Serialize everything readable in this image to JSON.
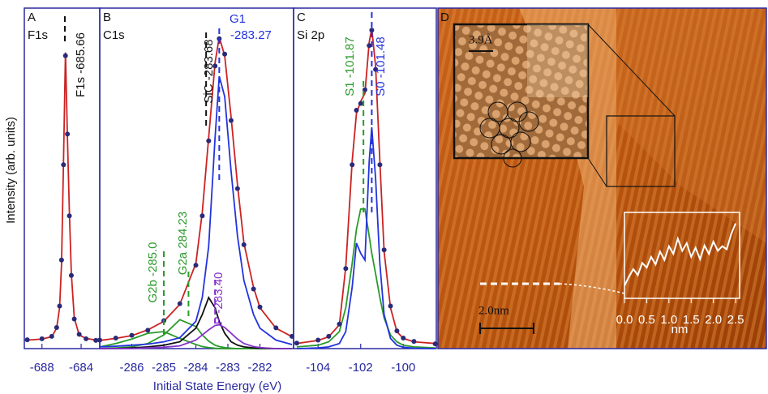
{
  "chart_data": [
    {
      "type": "line",
      "label": "A",
      "title": "F1s",
      "y_label": "Intensity (arb. units)",
      "xlim": [
        -689.8,
        -682.1
      ],
      "xticks": [
        -688,
        -684
      ],
      "ylim": [
        0,
        100
      ],
      "x": [
        -689.5,
        -688,
        -687,
        -686.5,
        -686.2,
        -686,
        -685.8,
        -685.6,
        -685.4,
        -685.2,
        -685,
        -684.7,
        -684.2,
        -683.5,
        -682.5
      ],
      "series": [
        {
          "style": "line",
          "color": "#cc2222",
          "values": [
            2.5,
            2.8,
            3.5,
            6,
            12,
            25,
            55,
            87,
            62,
            40,
            22,
            9,
            4,
            3,
            2.5
          ]
        },
        {
          "style": "dots",
          "color": "#2a2a7a",
          "values": [
            2.6,
            2.9,
            3.6,
            6.2,
            12.5,
            26,
            54,
            86,
            63,
            39,
            21.5,
            8.7,
            4.2,
            2.9,
            2.4
          ]
        }
      ],
      "annotations": [
        {
          "text": "F1s -685.66",
          "x": -685.66,
          "color": "#111111"
        }
      ]
    },
    {
      "type": "line",
      "label": "B",
      "title": "C1s",
      "x_label": "Initial State Energy (eV)",
      "xlim": [
        -287,
        -280.95
      ],
      "xticks": [
        -286,
        -285,
        -284,
        -283,
        -282
      ],
      "ylim": [
        0,
        100
      ],
      "x": [
        -287,
        -286.5,
        -286,
        -285.5,
        -285,
        -284.5,
        -284,
        -283.8,
        -283.6,
        -283.4,
        -283.27,
        -283.1,
        -282.9,
        -282.7,
        -282.5,
        -282.2,
        -282,
        -281.5,
        -281
      ],
      "series": [
        {
          "style": "line",
          "color": "#2a9a2a",
          "values": [
            0.5,
            1.5,
            2.8,
            4.5,
            5,
            3,
            1.2,
            0.6,
            0.3,
            0.1,
            0,
            0,
            0,
            0,
            0,
            0,
            0,
            0,
            0
          ]
        },
        {
          "style": "line",
          "color": "#2a9a2a",
          "values": [
            0,
            0.2,
            0.5,
            1.5,
            4,
            8.5,
            6.5,
            4,
            2.2,
            1,
            0.6,
            0.3,
            0.1,
            0,
            0,
            0,
            0,
            0,
            0
          ]
        },
        {
          "style": "line",
          "color": "#111111",
          "values": [
            0,
            0,
            0.2,
            0.5,
            1,
            2,
            6,
            10,
            15,
            12,
            8,
            4.5,
            2,
            1,
            0.5,
            0.2,
            0.1,
            0,
            0
          ]
        },
        {
          "style": "line",
          "color": "#8833cc",
          "values": [
            0,
            0,
            0,
            0.2,
            0.4,
            0.8,
            2.5,
            4,
            5.5,
            6.8,
            7,
            6.2,
            4.5,
            2.8,
            1.5,
            0.6,
            0.3,
            0,
            0
          ]
        },
        {
          "style": "line",
          "color": "#2233dd",
          "values": [
            0.5,
            0.7,
            1,
            1.3,
            2,
            3.2,
            8,
            15,
            30,
            62,
            80,
            74,
            52,
            33,
            20,
            10,
            6,
            2.5,
            1.2
          ]
        },
        {
          "style": "line",
          "color": "#cc2222",
          "values": [
            2.4,
            3,
            3.8,
            5.5,
            8,
            13,
            25,
            40,
            62,
            84,
            91.5,
            86,
            68,
            48,
            31,
            18,
            12,
            6,
            3.5
          ]
        },
        {
          "style": "dots",
          "color": "#2a2a7a",
          "values": [
            2.5,
            3.1,
            3.9,
            5.4,
            8.2,
            13.2,
            24.5,
            39,
            61,
            83,
            91,
            86.5,
            67,
            47,
            30.5,
            17.5,
            12.2,
            6.1,
            3.6
          ]
        }
      ],
      "annotations": [
        {
          "text": "SiC -283.68",
          "x": -283.68,
          "color": "#111111"
        },
        {
          "text": "G1",
          "text2": "-283.27",
          "x": -283.27,
          "color": "#2233dd"
        },
        {
          "text": "G2a 284.23",
          "x": -284.23,
          "color": "#2a9a2a"
        },
        {
          "text": "G2b -285.0",
          "x": -285.0,
          "color": "#2a9a2a"
        },
        {
          "text": "P -283.40",
          "x": -283.4,
          "color": "#8833cc"
        }
      ]
    },
    {
      "type": "line",
      "label": "C",
      "title": "Si 2p",
      "xlim": [
        -105.15,
        -98.45
      ],
      "xticks": [
        -104,
        -102,
        -100
      ],
      "ylim": [
        0,
        100
      ],
      "x": [
        -105,
        -104,
        -103.5,
        -103,
        -102.7,
        -102.4,
        -102.2,
        -102,
        -101.8,
        -101.6,
        -101.48,
        -101.3,
        -101.1,
        -100.9,
        -100.6,
        -100.3,
        -100,
        -99.5,
        -98.5
      ],
      "series": [
        {
          "style": "line",
          "color": "#2a9a2a",
          "values": [
            0.5,
            1,
            2,
            5,
            12,
            25,
            35,
            41,
            41,
            33,
            28,
            22,
            15,
            9,
            4,
            2,
            1,
            0.5,
            0.2
          ]
        },
        {
          "style": "line",
          "color": "#2233dd",
          "values": [
            0,
            0.2,
            0.5,
            1.5,
            5,
            18,
            31,
            28,
            26,
            55,
            65,
            50,
            25,
            10,
            3,
            1,
            0.4,
            0.1,
            0
          ]
        },
        {
          "style": "line",
          "color": "#cc2222",
          "values": [
            1.5,
            2.4,
            3.5,
            7,
            24,
            55,
            69,
            72.6,
            75,
            90,
            94,
            83,
            55,
            28.5,
            12,
            5,
            3,
            2,
            1.5
          ]
        },
        {
          "style": "dots",
          "color": "#2a2a7a",
          "values": [
            1.6,
            2.5,
            3.6,
            7.2,
            23.5,
            54,
            70,
            72,
            76,
            89,
            93.5,
            82,
            54,
            29,
            12.5,
            5.2,
            3.1,
            2.1,
            1.4
          ]
        }
      ],
      "annotations": [
        {
          "text": "S1 -101.87",
          "x": -101.87,
          "color": "#2a9a2a"
        },
        {
          "text": "S0 -101.48",
          "x": -101.48,
          "color": "#2233dd"
        }
      ]
    },
    {
      "type": "line",
      "x_label": "nm",
      "color": "#ffffff",
      "xlim": [
        0,
        2.59
      ],
      "ylim": [
        0,
        100
      ],
      "xticks": [
        {
          "value": 0,
          "label": "0.0"
        },
        0.5,
        {
          "value": 1,
          "label": "1.0"
        },
        1.5,
        {
          "value": 2,
          "label": "2.0"
        },
        2.5
      ],
      "x": [
        0,
        0.1,
        0.2,
        0.3,
        0.4,
        0.5,
        0.6,
        0.7,
        0.8,
        0.9,
        1,
        1.1,
        1.2,
        1.3,
        1.4,
        1.5,
        1.6,
        1.7,
        1.8,
        1.9,
        2,
        2.1,
        2.2,
        2.3,
        2.4,
        2.5
      ],
      "values": [
        10,
        22,
        32,
        24,
        40,
        34,
        48,
        38,
        55,
        44,
        62,
        52,
        72,
        56,
        66,
        48,
        60,
        45,
        63,
        52,
        68,
        56,
        62,
        58,
        78,
        92
      ]
    }
  ],
  "image": {
    "label": "D",
    "atom_scale": "3.9Å",
    "scale_bar": "2.0nm"
  }
}
